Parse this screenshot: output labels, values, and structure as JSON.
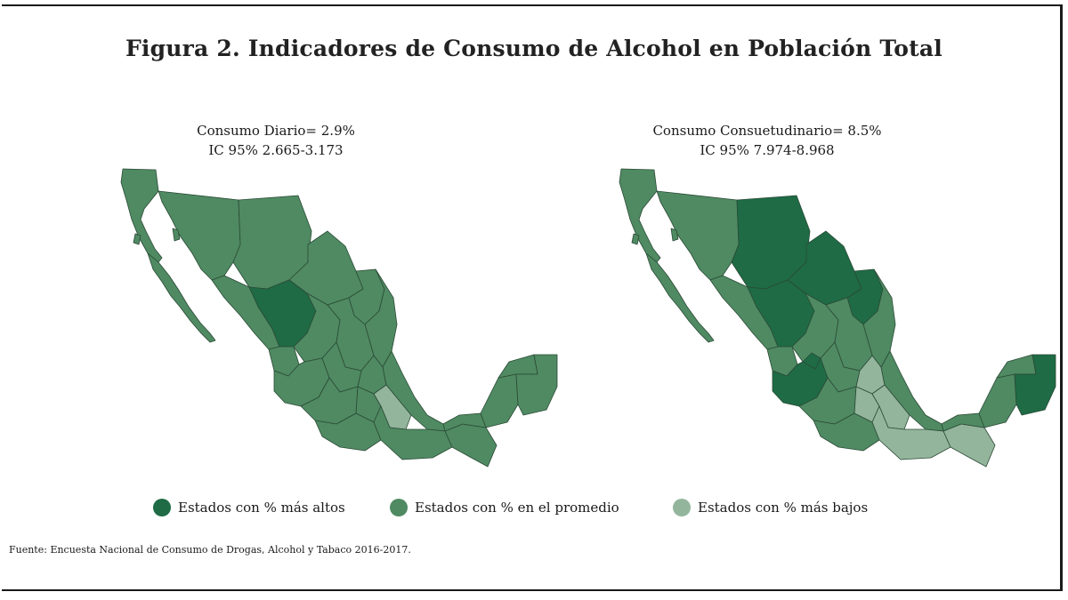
{
  "title": "Figura 2. Indicadores de Consumo de Alcohol en Población Total",
  "maps": [
    {
      "stat_line1": "Consumo Diario= 2.9%",
      "stat_line2": "IC 95% 2.665-3.173"
    },
    {
      "stat_line1": "Consumo Consuetudinario= 8.5%",
      "stat_line2": "IC 95% 7.974-8.968"
    }
  ],
  "legend": [
    {
      "label": "Estados con % más altos",
      "color": "#1e6b45"
    },
    {
      "label": "Estados con % en el promedio",
      "color": "#4f8a62"
    },
    {
      "label": "Estados con % más bajos",
      "color": "#93b59c"
    }
  ],
  "source": "Fuente: Encuesta Nacional de Consumo de Drogas, Alcohol y Tabaco 2016-2017."
}
